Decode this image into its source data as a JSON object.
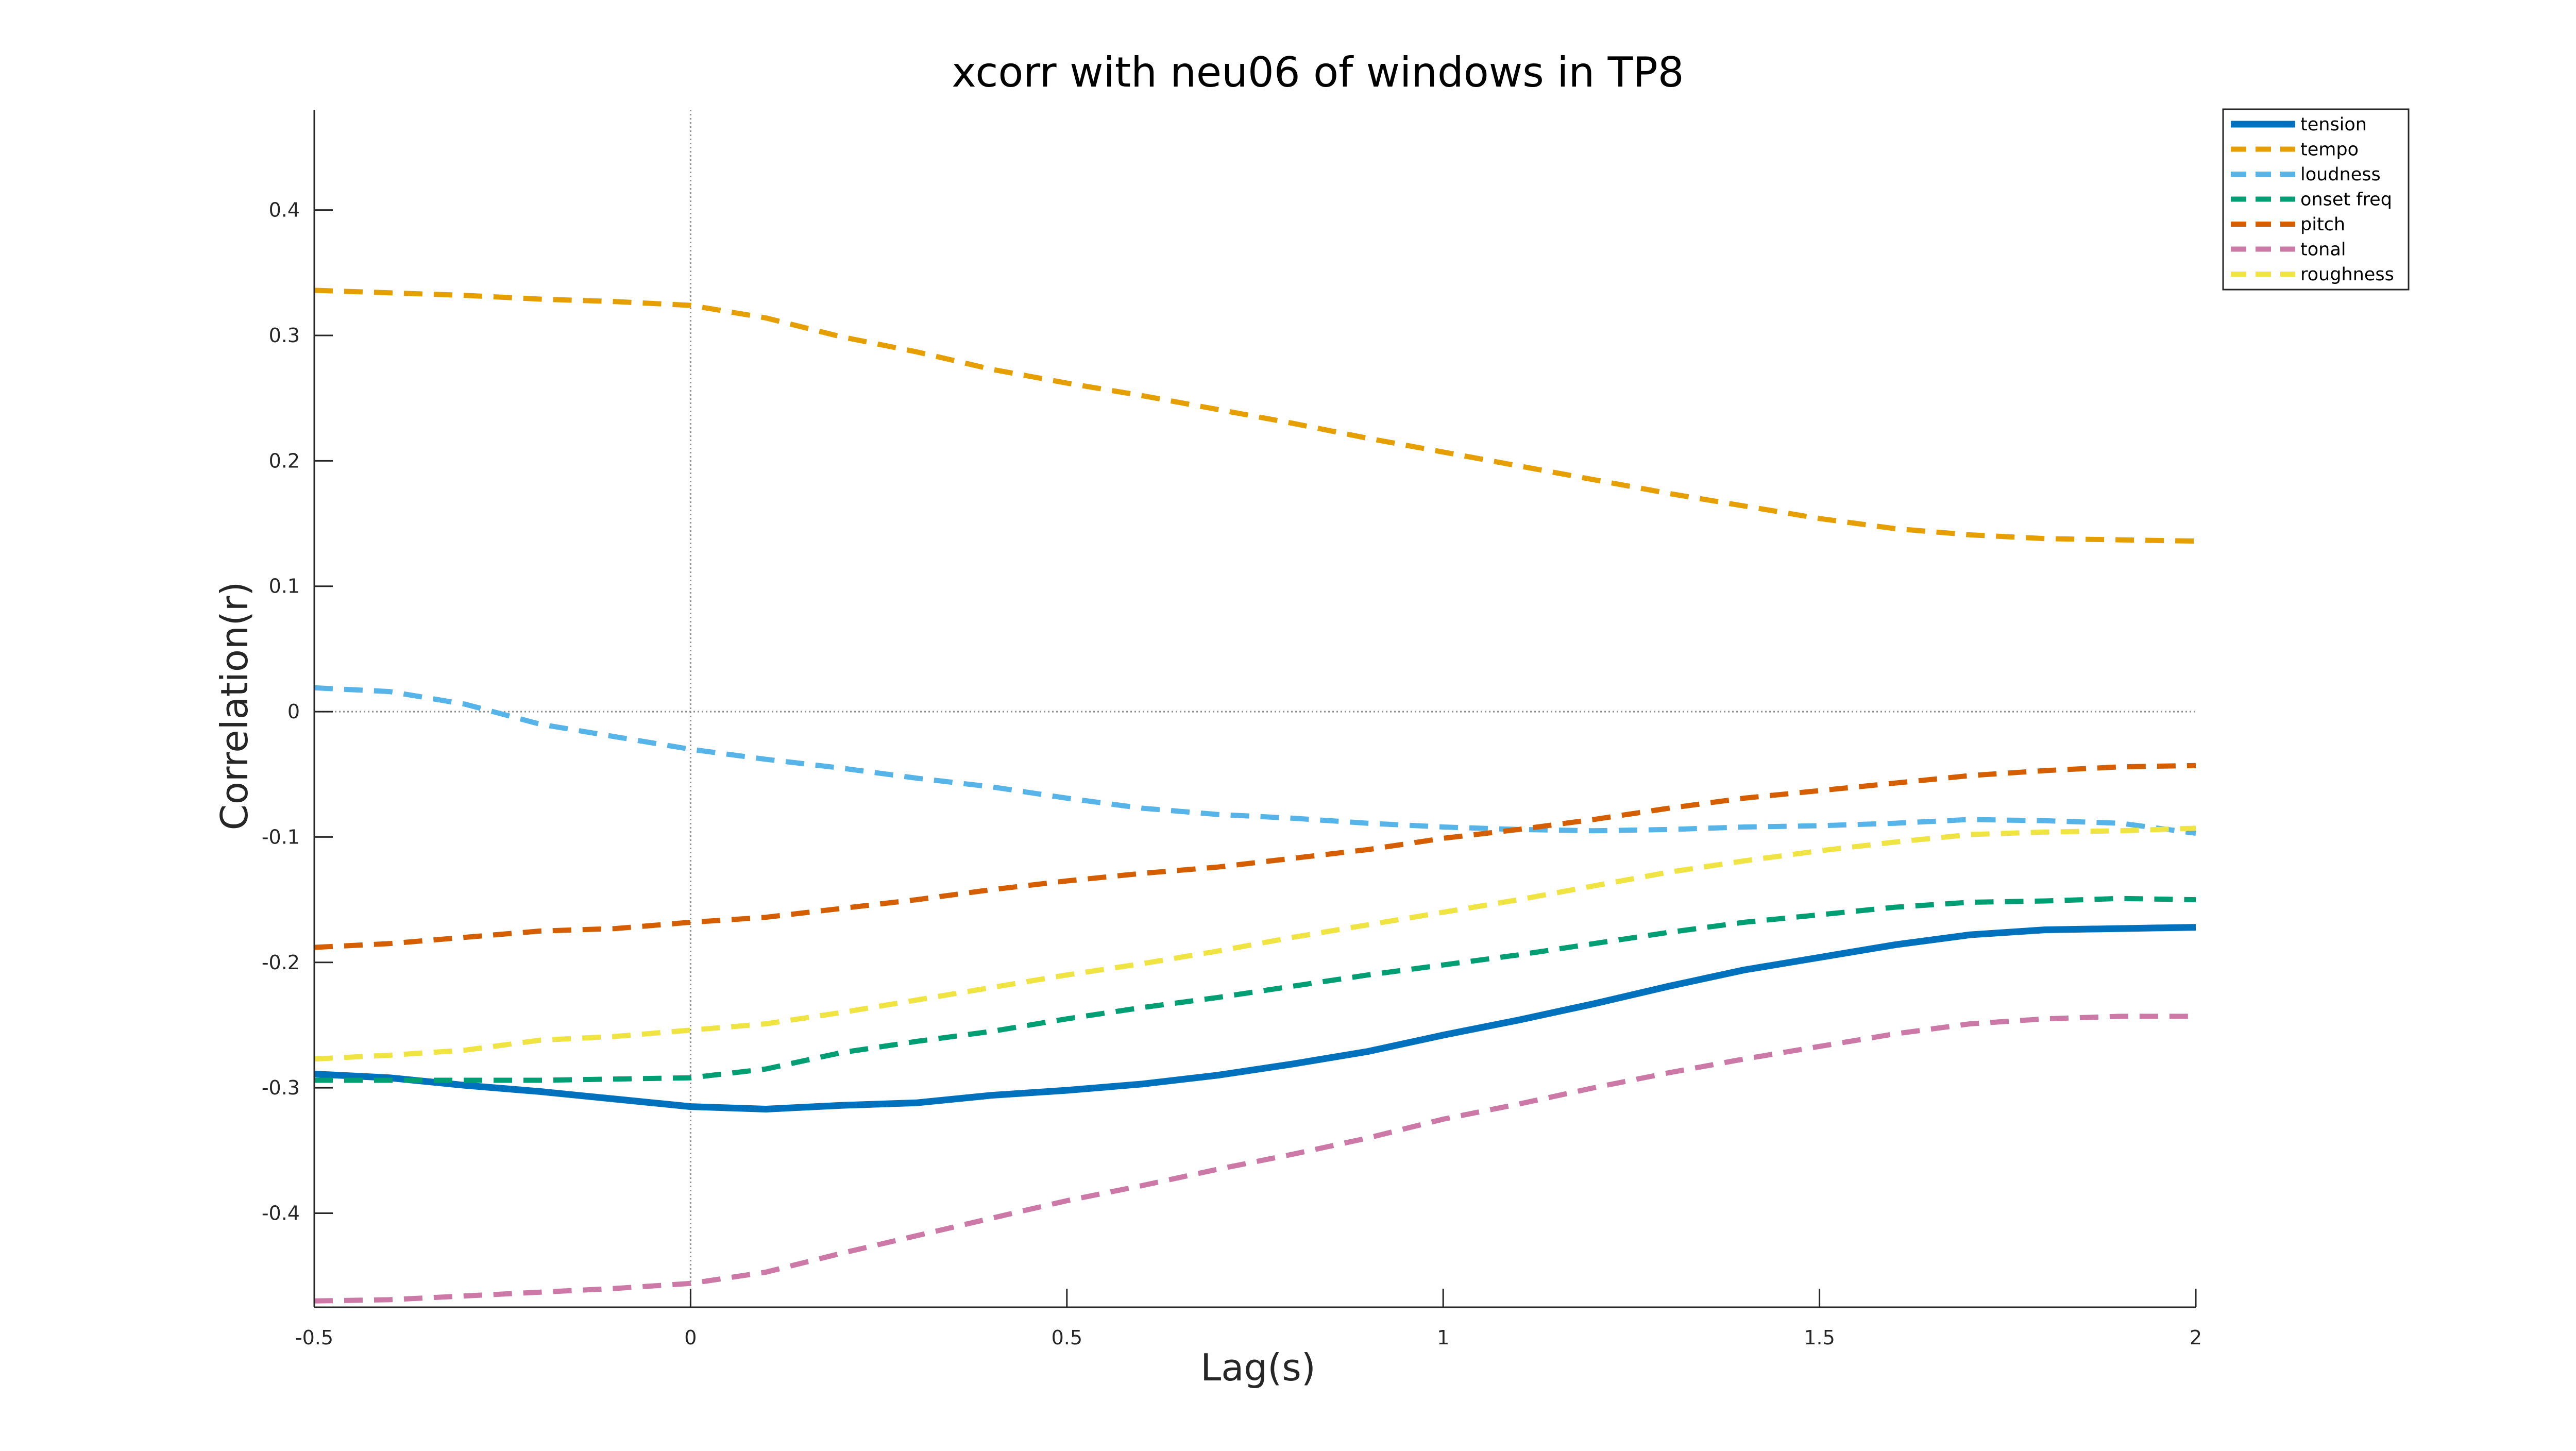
{
  "chart_data": {
    "type": "line",
    "title": "xcorr with neu06 of windows in TP8",
    "xlabel": "Lag(s)",
    "ylabel": "Correlation(r)",
    "xlim": [
      -0.5,
      2
    ],
    "ylim": [
      -0.475,
      0.48
    ],
    "xticks": [
      -0.5,
      0,
      0.5,
      1,
      1.5,
      2
    ],
    "xtick_labels": [
      "-0.5",
      "0",
      "0.5",
      "1",
      "1.5",
      "2"
    ],
    "yticks": [
      -0.4,
      -0.3,
      -0.2,
      -0.1,
      0,
      0.1,
      0.2,
      0.3,
      0.4
    ],
    "ytick_labels": [
      "-0.4",
      "-0.3",
      "-0.2",
      "-0.1",
      "0",
      "0.1",
      "0.2",
      "0.3",
      "0.4"
    ],
    "grid": false,
    "reference_lines": {
      "x": 0,
      "y": 0
    },
    "legend": {
      "position": "top-right"
    },
    "x": [
      -0.5,
      -0.4,
      -0.3,
      -0.2,
      -0.1,
      0,
      0.1,
      0.2,
      0.3,
      0.4,
      0.5,
      0.6,
      0.7,
      0.8,
      0.9,
      1.0,
      1.1,
      1.2,
      1.3,
      1.4,
      1.5,
      1.6,
      1.7,
      1.8,
      1.9,
      2.0
    ],
    "series": [
      {
        "name": "tension",
        "color": "#0072BD",
        "style": "solid",
        "width": 13,
        "values": [
          -0.289,
          -0.292,
          -0.298,
          -0.303,
          -0.309,
          -0.315,
          -0.317,
          -0.314,
          -0.312,
          -0.306,
          -0.302,
          -0.297,
          -0.29,
          -0.281,
          -0.271,
          -0.258,
          -0.246,
          -0.233,
          -0.219,
          -0.206,
          -0.196,
          -0.186,
          -0.178,
          -0.174,
          -0.173,
          -0.172
        ]
      },
      {
        "name": "tempo",
        "color": "#E69F00",
        "style": "dashed",
        "width": 10,
        "values": [
          0.336,
          0.334,
          0.332,
          0.329,
          0.327,
          0.324,
          0.314,
          0.299,
          0.287,
          0.273,
          0.262,
          0.252,
          0.241,
          0.23,
          0.218,
          0.207,
          0.196,
          0.185,
          0.174,
          0.164,
          0.154,
          0.146,
          0.141,
          0.138,
          0.137,
          0.136
        ]
      },
      {
        "name": "loudness",
        "color": "#56B4E9",
        "style": "dashed",
        "width": 10,
        "values": [
          0.019,
          0.016,
          0.006,
          -0.01,
          -0.02,
          -0.03,
          -0.038,
          -0.045,
          -0.053,
          -0.06,
          -0.069,
          -0.077,
          -0.082,
          -0.085,
          -0.089,
          -0.092,
          -0.094,
          -0.095,
          -0.094,
          -0.092,
          -0.091,
          -0.089,
          -0.086,
          -0.087,
          -0.089,
          -0.097
        ]
      },
      {
        "name": "onset freq",
        "color": "#009E73",
        "style": "dashed",
        "width": 10,
        "values": [
          -0.294,
          -0.294,
          -0.294,
          -0.294,
          -0.293,
          -0.292,
          -0.285,
          -0.272,
          -0.263,
          -0.255,
          -0.245,
          -0.236,
          -0.228,
          -0.219,
          -0.21,
          -0.202,
          -0.194,
          -0.185,
          -0.176,
          -0.168,
          -0.162,
          -0.156,
          -0.152,
          -0.151,
          -0.149,
          -0.15
        ]
      },
      {
        "name": "pitch",
        "color": "#D55E00",
        "style": "dashed",
        "width": 10,
        "values": [
          -0.188,
          -0.185,
          -0.18,
          -0.175,
          -0.173,
          -0.168,
          -0.164,
          -0.157,
          -0.15,
          -0.142,
          -0.135,
          -0.129,
          -0.124,
          -0.117,
          -0.11,
          -0.101,
          -0.094,
          -0.086,
          -0.077,
          -0.069,
          -0.063,
          -0.057,
          -0.051,
          -0.047,
          -0.044,
          -0.043
        ]
      },
      {
        "name": "tonal",
        "color": "#CC79A7",
        "style": "dashed",
        "width": 10,
        "values": [
          -0.47,
          -0.469,
          -0.466,
          -0.463,
          -0.46,
          -0.456,
          -0.447,
          -0.432,
          -0.418,
          -0.404,
          -0.39,
          -0.378,
          -0.365,
          -0.353,
          -0.34,
          -0.325,
          -0.313,
          -0.3,
          -0.288,
          -0.277,
          -0.267,
          -0.257,
          -0.249,
          -0.245,
          -0.243,
          -0.243
        ]
      },
      {
        "name": "roughness",
        "color": "#F0E442",
        "style": "dashed",
        "width": 10,
        "values": [
          -0.277,
          -0.274,
          -0.27,
          -0.262,
          -0.259,
          -0.254,
          -0.249,
          -0.24,
          -0.23,
          -0.22,
          -0.21,
          -0.201,
          -0.191,
          -0.18,
          -0.17,
          -0.16,
          -0.15,
          -0.139,
          -0.128,
          -0.119,
          -0.111,
          -0.104,
          -0.098,
          -0.096,
          -0.095,
          -0.093
        ]
      }
    ]
  }
}
